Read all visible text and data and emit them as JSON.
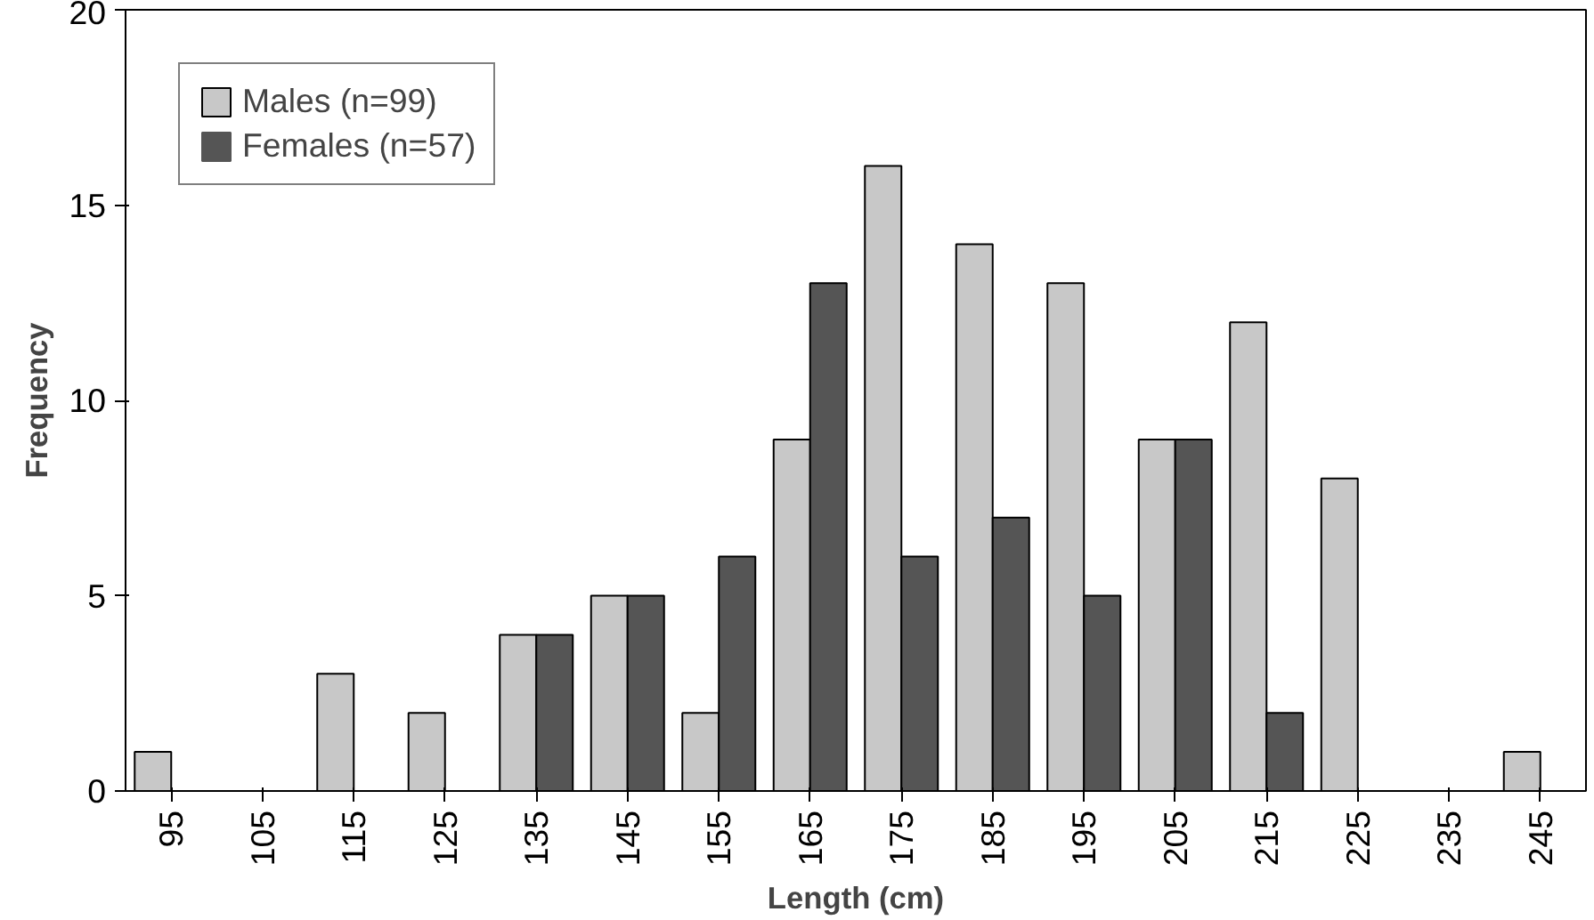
{
  "chart_data": {
    "type": "bar",
    "xlabel": "Length (cm)",
    "ylabel": "Frequency",
    "categories": [
      "95",
      "105",
      "115",
      "125",
      "135",
      "145",
      "155",
      "165",
      "175",
      "185",
      "195",
      "205",
      "215",
      "225",
      "235",
      "245"
    ],
    "series": [
      {
        "name": "Males (n=99)",
        "color": "#c8c8c8",
        "values": [
          1,
          0,
          3,
          2,
          4,
          5,
          2,
          9,
          16,
          14,
          13,
          9,
          12,
          8,
          0,
          1
        ]
      },
      {
        "name": "Females (n=57)",
        "color": "#555555",
        "values": [
          0,
          0,
          0,
          0,
          4,
          5,
          6,
          13,
          6,
          7,
          5,
          9,
          2,
          0,
          0,
          0
        ]
      }
    ],
    "ylim": [
      0,
      20
    ],
    "yticks": [
      0,
      5,
      10,
      15,
      20
    ],
    "grid": false,
    "legend": "top left"
  }
}
